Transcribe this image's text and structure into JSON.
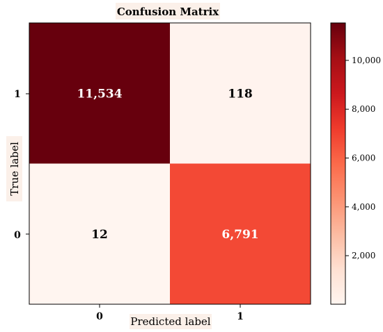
{
  "chart_data": {
    "type": "heatmap",
    "title": "Confusion Matrix",
    "xlabel": "Predicted label",
    "ylabel": "True label",
    "x_categories": [
      "0",
      "1"
    ],
    "y_categories": [
      "1",
      "0"
    ],
    "matrix": [
      [
        11534,
        118
      ],
      [
        12,
        6791
      ]
    ],
    "matrix_labels": [
      [
        "11,534",
        "118"
      ],
      [
        "12",
        "6,791"
      ]
    ],
    "colormap": "Reds",
    "colorbar": {
      "range": [
        12,
        11534
      ],
      "ticks": [
        2000,
        4000,
        6000,
        8000,
        10000
      ],
      "tick_labels": [
        "2,000",
        "4,000",
        "6,000",
        "8,000",
        "10,000"
      ]
    },
    "grid": false,
    "colors": {
      "low": "#fff5f0",
      "high": "#67000d"
    }
  }
}
